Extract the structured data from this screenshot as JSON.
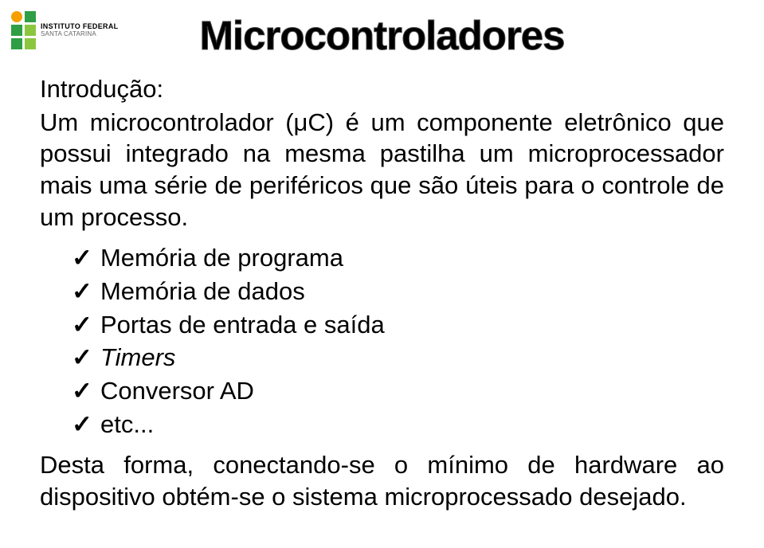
{
  "logo": {
    "colors": {
      "green_dark": "#2f9e44",
      "green_light": "#8cc63f",
      "orange": "#f59f00"
    },
    "line1": "INSTITUTO FEDERAL",
    "line2": "SANTA CATARINA"
  },
  "title": {
    "text": "Microcontroladores",
    "fontsize": 51,
    "color": "#000000"
  },
  "intro_label": "Introdução:",
  "paragraph1": "Um microcontrolador (μC) é um componente eletrônico que possui integrado na mesma pastilha um microprocessador mais uma série de periféricos que são úteis para o controle de um processo.",
  "list": {
    "check_glyph": "✓",
    "items": [
      {
        "text": "Memória de programa",
        "italic": false
      },
      {
        "text": "Memória de dados",
        "italic": false
      },
      {
        "text": "Portas de entrada e saída",
        "italic": false
      },
      {
        "text": "Timers",
        "italic": true
      },
      {
        "text": "Conversor AD",
        "italic": false
      },
      {
        "text": "etc...",
        "italic": false
      }
    ]
  },
  "paragraph2": "Desta forma, conectando-se o mínimo de hardware ao dispositivo obtém-se o sistema microprocessado desejado.",
  "body_fontsize": 31,
  "body_color": "#000000"
}
